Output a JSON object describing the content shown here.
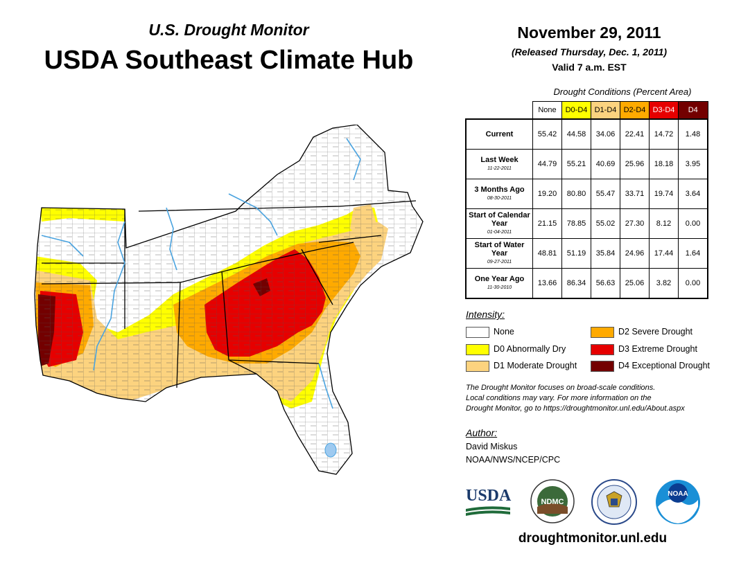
{
  "header": {
    "supertitle": "U.S. Drought Monitor",
    "title": "USDA Southeast Climate Hub",
    "date": "November 29, 2011",
    "released": "(Released Thursday, Dec. 1, 2011)",
    "valid": "Valid 7 a.m. EST"
  },
  "table": {
    "caption": "Drought Conditions (Percent Area)",
    "columns": [
      {
        "label": "None",
        "color": "#ffffff",
        "text_color": "#000000"
      },
      {
        "label": "D0-D4",
        "color": "#ffff00",
        "text_color": "#000000"
      },
      {
        "label": "D1-D4",
        "color": "#fcd37f",
        "text_color": "#000000"
      },
      {
        "label": "D2-D4",
        "color": "#ffaa00",
        "text_color": "#000000"
      },
      {
        "label": "D3-D4",
        "color": "#e60000",
        "text_color": "#ffffff"
      },
      {
        "label": "D4",
        "color": "#730000",
        "text_color": "#ffffff"
      }
    ],
    "rows": [
      {
        "label": "Current",
        "date": "",
        "values": [
          "55.42",
          "44.58",
          "34.06",
          "22.41",
          "14.72",
          "1.48"
        ]
      },
      {
        "label": "Last Week",
        "date": "11-22-2011",
        "values": [
          "44.79",
          "55.21",
          "40.69",
          "25.96",
          "18.18",
          "3.95"
        ]
      },
      {
        "label": "3 Months Ago",
        "date": "08-30-2011",
        "values": [
          "19.20",
          "80.80",
          "55.47",
          "33.71",
          "19.74",
          "3.64"
        ]
      },
      {
        "label": "Start of Calendar Year",
        "date": "01-04-2011",
        "values": [
          "21.15",
          "78.85",
          "55.02",
          "27.30",
          "8.12",
          "0.00"
        ]
      },
      {
        "label": "Start of Water Year",
        "date": "09-27-2011",
        "values": [
          "48.81",
          "51.19",
          "35.84",
          "24.96",
          "17.44",
          "1.64"
        ]
      },
      {
        "label": "One Year Ago",
        "date": "11-30-2010",
        "values": [
          "13.66",
          "86.34",
          "56.63",
          "25.06",
          "3.82",
          "0.00"
        ]
      }
    ]
  },
  "legend": {
    "title": "Intensity:",
    "items": [
      {
        "label": "None",
        "color": "#ffffff"
      },
      {
        "label": "D0 Abnormally Dry",
        "color": "#ffff00"
      },
      {
        "label": "D1 Moderate Drought",
        "color": "#fcd37f"
      },
      {
        "label": "D2 Severe Drought",
        "color": "#ffaa00"
      },
      {
        "label": "D3 Extreme Drought",
        "color": "#e60000"
      },
      {
        "label": "D4 Exceptional Drought",
        "color": "#730000"
      }
    ]
  },
  "note": {
    "line1": "The Drought Monitor focuses on broad-scale conditions.",
    "line2": "Local conditions may vary. For more information on the",
    "line3": "Drought Monitor, go to https://droughtmonitor.unl.edu/About.aspx"
  },
  "author": {
    "title": "Author:",
    "name": "David Miskus",
    "org": "NOAA/NWS/NCEP/CPC"
  },
  "logos": {
    "usda": "USDA",
    "ndmc": "NDMC",
    "noaa": "NOAA"
  },
  "footer": {
    "site": "droughtmonitor.unl.edu"
  }
}
